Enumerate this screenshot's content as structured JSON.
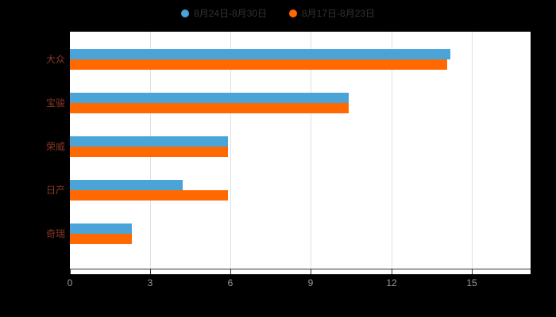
{
  "page": {
    "background": "#000000"
  },
  "legend": {
    "items": [
      {
        "label": "8月24日-8月30日",
        "color": "#4aa4d8",
        "marker": "circle"
      },
      {
        "label": "8月17日-8月23日",
        "color": "#ff6900",
        "marker": "circle"
      }
    ]
  },
  "chart_data": {
    "type": "bar",
    "orientation": "horizontal",
    "title": "",
    "categories": [
      "大众",
      "宝骏",
      "荣威",
      "日产",
      "奇瑞"
    ],
    "series": [
      {
        "name": "8月24日-8月30日",
        "color": "#4aa4d8",
        "values": [
          14.2,
          10.4,
          5.9,
          4.2,
          2.3
        ]
      },
      {
        "name": "8月17日-8月23日",
        "color": "#ff6900",
        "values": [
          14.1,
          10.4,
          5.9,
          5.9,
          2.3
        ]
      }
    ],
    "xticks": [
      0,
      3,
      6,
      9,
      12,
      15
    ],
    "xlim": [
      0,
      17.2
    ],
    "grid": true,
    "legend_position": "top",
    "plot_background": "#ffffff",
    "gridline_color": "#e0e0e0",
    "axis_color": "#333333",
    "tick_label_color": "#999999",
    "category_label_color": "#8b3626"
  }
}
